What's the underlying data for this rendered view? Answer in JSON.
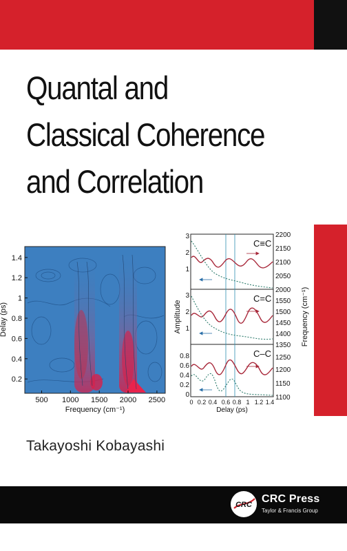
{
  "cover": {
    "title_lines": [
      "Quantal and",
      "Classical Coherence",
      "and Correlation"
    ],
    "author": "Takayoshi Kobayashi",
    "publisher": {
      "name": "CRC Press",
      "subtitle": "Taylor & Francis Group",
      "logo_text": "CRC"
    },
    "colors": {
      "brand_red": "#d5212b",
      "band_black": "#0a0a0a",
      "map_blue": "#3d7fc0",
      "curve_red": "#a8283a"
    }
  },
  "chart_data": [
    {
      "type": "heatmap",
      "xlabel": "Frequency (cm⁻¹)",
      "ylabel": "Delay (ps)",
      "xticks": [
        "500",
        "1000",
        "1500",
        "2000",
        "2500"
      ],
      "yticks": [
        "0.2",
        "0.4",
        "0.6",
        "0.8",
        "1",
        "1.2",
        "1.4"
      ],
      "xlim": [
        120,
        2780
      ],
      "ylim": [
        0.05,
        1.5
      ]
    },
    {
      "type": "line",
      "xlabel": "Delay (ps)",
      "ylabel_left": "Amplitude",
      "ylabel_right": "Frequency (cm⁻¹)",
      "xticks": [
        "0",
        "0.2",
        "0.4",
        "0.6",
        "0.8",
        "1",
        "1.2",
        "1.4"
      ],
      "panels": [
        {
          "label": "C≡C",
          "left_ticks": [
            "1",
            "2",
            "3"
          ],
          "right_ticks": [
            "2050",
            "2100",
            "2150",
            "2200"
          ]
        },
        {
          "label": "C=C",
          "left_ticks": [
            "1",
            "2",
            "3"
          ],
          "right_ticks": [
            "1400",
            "1450",
            "1500",
            "1550"
          ]
        },
        {
          "label": "C–C",
          "left_ticks": [
            "0",
            "0.2",
            "0.4",
            "0.6",
            "0.8"
          ],
          "right_ticks": [
            "1100",
            "1150",
            "1200",
            "1250",
            "1350"
          ]
        }
      ],
      "right_extra_ticks": [
        "2000"
      ]
    }
  ]
}
